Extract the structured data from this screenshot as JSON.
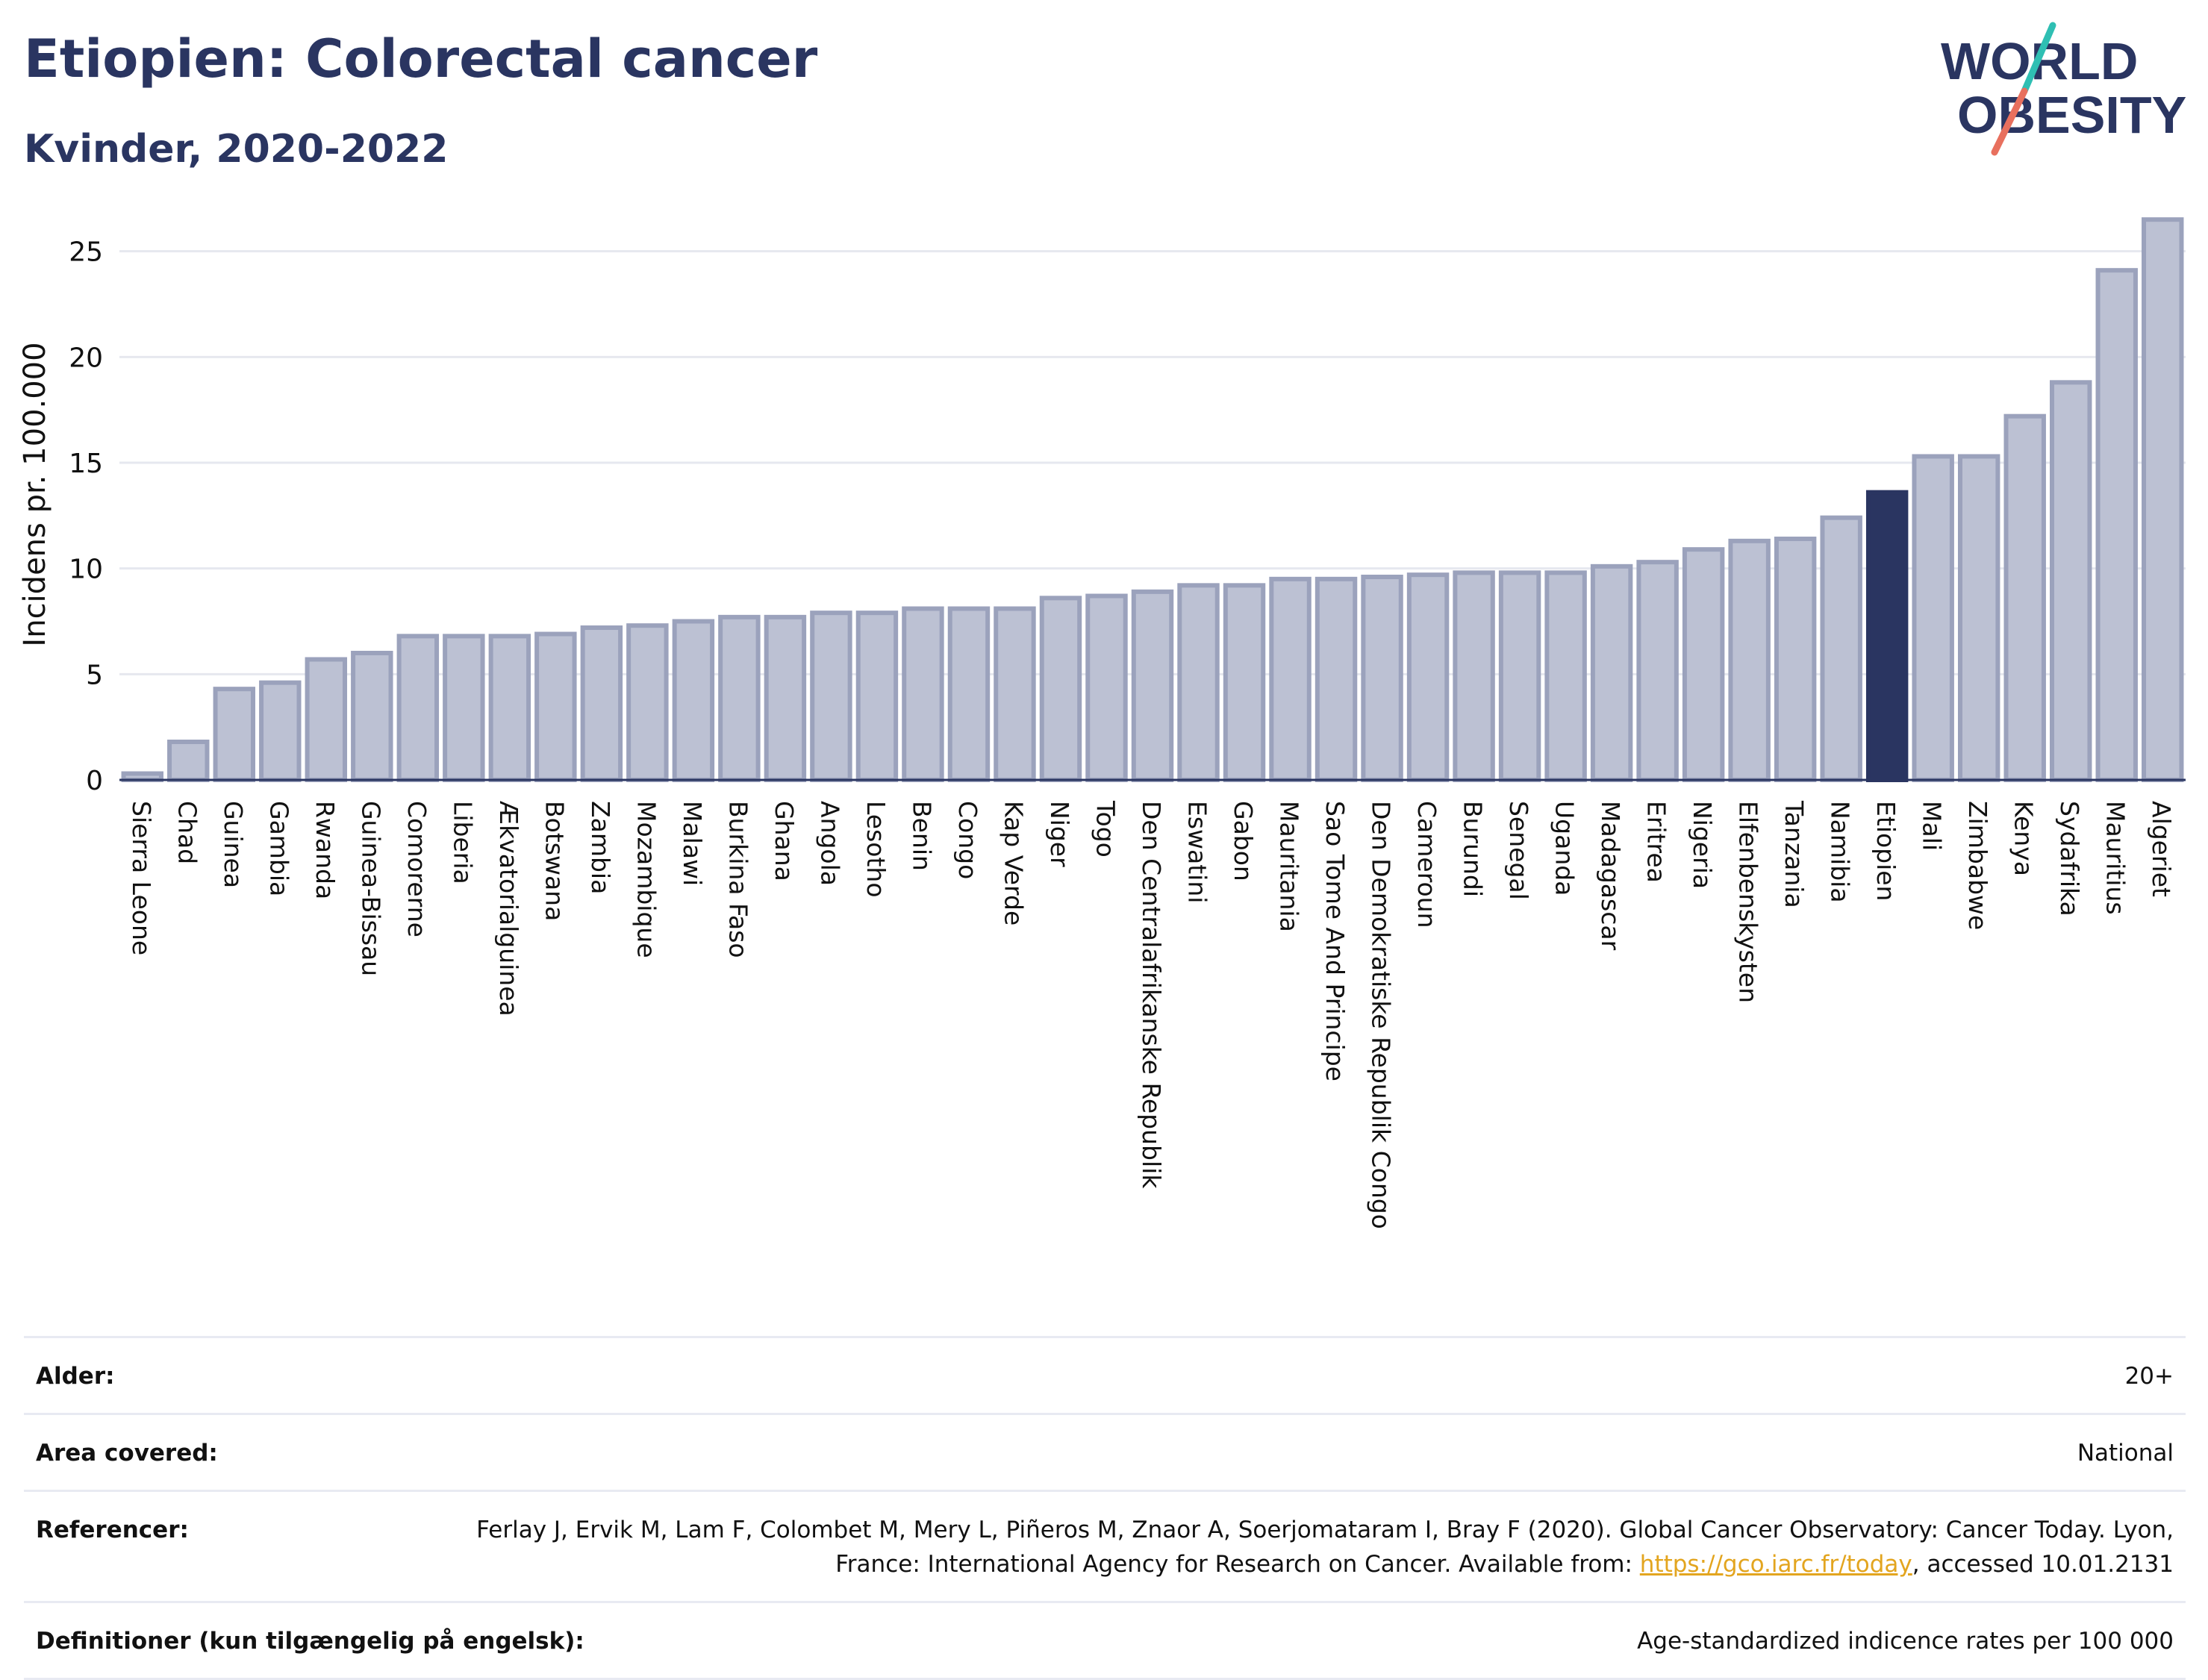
{
  "header": {
    "title": "Etiopien: Colorectal cancer",
    "subtitle": "Kvinder, 2020-2022"
  },
  "logo": {
    "line1": "WORLD",
    "line2": "OBESITY"
  },
  "colors": {
    "bar_fill": "#bcc1d3",
    "bar_stroke": "#9ba2bc",
    "highlight_fill": "#2a3561",
    "text": "#2a3561",
    "grid": "#e6e8ef",
    "logo_teal": "#2fbfb3",
    "logo_coral": "#e8705e"
  },
  "chart_data": {
    "type": "bar",
    "ylabel": "Incidens pr. 100.000",
    "xlabel": "",
    "ylim": [
      0,
      27
    ],
    "yticks": [
      0,
      5,
      10,
      15,
      20,
      25
    ],
    "grid": true,
    "highlight": "Etiopien",
    "categories": [
      "Sierra Leone",
      "Chad",
      "Guinea",
      "Gambia",
      "Rwanda",
      "Guinea-Bissau",
      "Comorerne",
      "Liberia",
      "Ækvatorialguinea",
      "Botswana",
      "Zambia",
      "Mozambique",
      "Malawi",
      "Burkina Faso",
      "Ghana",
      "Angola",
      "Lesotho",
      "Benin",
      "Congo",
      "Kap Verde",
      "Niger",
      "Togo",
      "Den Centralafrikanske Republik",
      "Eswatini",
      "Gabon",
      "Mauritania",
      "Sao Tome And Principe",
      "Den Demokratiske Republik Congo",
      "Cameroun",
      "Burundi",
      "Senegal",
      "Uganda",
      "Madagascar",
      "Eritrea",
      "Nigeria",
      "Elfenbenskysten",
      "Tanzania",
      "Namibia",
      "Etiopien",
      "Mali",
      "Zimbabwe",
      "Kenya",
      "Sydafrika",
      "Mauritius",
      "Algeriet"
    ],
    "values": [
      0.3,
      1.8,
      4.3,
      4.6,
      5.7,
      6.0,
      6.8,
      6.8,
      6.8,
      6.9,
      7.2,
      7.3,
      7.5,
      7.7,
      7.7,
      7.9,
      7.9,
      8.1,
      8.1,
      8.1,
      8.6,
      8.7,
      8.9,
      9.2,
      9.2,
      9.5,
      9.5,
      9.6,
      9.7,
      9.8,
      9.8,
      9.8,
      10.1,
      10.3,
      10.9,
      11.3,
      11.4,
      12.4,
      13.6,
      15.3,
      15.3,
      17.2,
      18.8,
      24.1,
      26.5
    ]
  },
  "info": {
    "age_label": "Alder:",
    "age_value": "20+",
    "area_label": "Area covered:",
    "area_value": "National",
    "ref_label": "Referencer:",
    "ref_text1": "Ferlay J, Ervik M, Lam F, Colombet M, Mery L, Piñeros M, Znaor A, Soerjomataram I, Bray F (2020). Global Cancer Observatory: Cancer Today. Lyon, France: International Agency for Research on Cancer. Available from: ",
    "ref_link": "https://gco.iarc.fr/today",
    "ref_text2": ", accessed 10.01.2131",
    "def_label": "Definitioner (kun tilgængelig på engelsk):",
    "def_value": "Age-standardized indicence rates per 100 000"
  }
}
